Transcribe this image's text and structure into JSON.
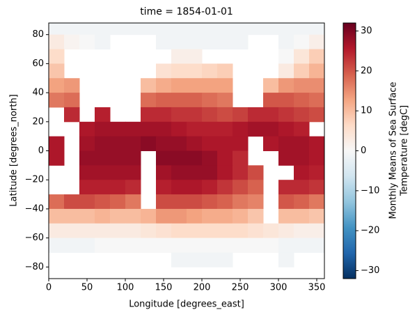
{
  "chart_data": {
    "type": "heatmap",
    "title": "time = 1854-01-01",
    "xlabel": "Longitude [degrees_east]",
    "ylabel": "Latitude [degrees_north]",
    "colorbar_label": [
      "Monthly Means of Sea Surface",
      "Temperature [degC]"
    ],
    "colormap": [
      "#053061",
      "#2166ac",
      "#4393c3",
      "#92c5de",
      "#d1e5f0",
      "#f7f7f7",
      "#fddbc7",
      "#f4a582",
      "#d6604d",
      "#b2182b",
      "#67001f"
    ],
    "clim": [
      -32,
      32
    ],
    "cticks": [
      {
        "value": -30,
        "label": "−30"
      },
      {
        "value": -20,
        "label": "−20"
      },
      {
        "value": -10,
        "label": "−10"
      },
      0,
      10,
      20,
      30
    ],
    "xlim": [
      0,
      360
    ],
    "xticks": [
      0,
      50,
      100,
      150,
      200,
      250,
      300,
      350
    ],
    "ylim": [
      -88,
      88
    ],
    "yticks": [
      {
        "value": -80,
        "label": "−80"
      },
      {
        "value": -60,
        "label": "−60"
      },
      {
        "value": -40,
        "label": "−40"
      },
      {
        "value": -20,
        "label": "−20"
      },
      0,
      20,
      40,
      60,
      80
    ],
    "x_edges": [
      0,
      20,
      40,
      60,
      80,
      100,
      120,
      140,
      160,
      180,
      200,
      220,
      240,
      260,
      280,
      300,
      320,
      340,
      360
    ],
    "y_edges": [
      90,
      80,
      70,
      60,
      50,
      40,
      30,
      20,
      10,
      0,
      -10,
      -20,
      -30,
      -40,
      -50,
      -60,
      -70,
      -80,
      -90
    ],
    "z": [
      [
        -1,
        -1,
        -1,
        -1,
        -1,
        -1,
        -1,
        -1,
        -1,
        -1,
        -1,
        -1,
        -1,
        -1,
        -1,
        -1,
        -1,
        -1
      ],
      [
        3,
        1,
        0,
        -1,
        null,
        null,
        null,
        -1,
        -1,
        -1,
        -1,
        -1,
        -1,
        null,
        null,
        -1,
        0,
        2
      ],
      [
        6,
        null,
        null,
        null,
        null,
        null,
        null,
        null,
        2,
        2,
        null,
        null,
        null,
        null,
        null,
        0,
        4,
        8
      ],
      [
        9,
        null,
        null,
        null,
        null,
        null,
        null,
        5,
        6,
        6,
        7,
        8,
        null,
        null,
        null,
        3,
        8,
        11
      ],
      [
        13,
        14,
        null,
        null,
        null,
        null,
        10,
        12,
        13,
        13,
        13,
        13,
        null,
        null,
        10,
        14,
        15,
        15
      ],
      [
        17,
        18,
        null,
        null,
        null,
        null,
        18,
        19,
        19,
        19,
        18,
        17,
        null,
        null,
        20,
        20,
        19,
        18
      ],
      [
        null,
        24,
        null,
        25,
        null,
        null,
        24,
        24,
        23,
        23,
        22,
        21,
        22,
        24,
        24,
        23,
        22,
        21
      ],
      [
        null,
        null,
        26,
        27,
        27,
        27,
        27,
        27,
        26,
        25,
        25,
        25,
        26,
        27,
        27,
        26,
        25,
        null
      ],
      [
        26,
        null,
        27,
        28,
        28,
        28,
        29,
        28,
        28,
        27,
        26,
        26,
        26,
        null,
        26,
        27,
        27,
        26
      ],
      [
        26,
        null,
        28,
        28,
        28,
        28,
        null,
        29,
        29,
        29,
        28,
        26,
        24,
        null,
        null,
        27,
        27,
        26
      ],
      [
        null,
        null,
        27,
        27,
        27,
        27,
        null,
        27,
        28,
        28,
        28,
        26,
        24,
        21,
        null,
        null,
        26,
        25
      ],
      [
        null,
        null,
        25,
        25,
        25,
        24,
        null,
        25,
        26,
        26,
        25,
        23,
        21,
        19,
        null,
        24,
        24,
        23
      ],
      [
        18,
        21,
        21,
        20,
        19,
        17,
        null,
        21,
        21,
        21,
        20,
        19,
        17,
        16,
        null,
        20,
        19,
        17
      ],
      [
        10,
        10,
        10,
        11,
        10,
        10,
        11,
        14,
        14,
        13,
        12,
        12,
        11,
        9,
        null,
        10,
        10,
        9
      ],
      [
        3,
        3,
        3,
        3,
        3,
        3,
        4,
        5,
        6,
        6,
        6,
        6,
        6,
        5,
        4,
        3,
        2,
        2
      ],
      [
        -1,
        -1,
        -1,
        0,
        0,
        0,
        0,
        0,
        0,
        0,
        0,
        0,
        0,
        0,
        0,
        -1,
        -1,
        -1
      ],
      [
        null,
        null,
        null,
        null,
        null,
        null,
        null,
        null,
        -1,
        -1,
        -1,
        -1,
        null,
        null,
        null,
        -1,
        null,
        null
      ],
      [
        null,
        null,
        null,
        null,
        null,
        null,
        null,
        null,
        null,
        null,
        null,
        null,
        null,
        null,
        null,
        null,
        null,
        null
      ]
    ]
  }
}
